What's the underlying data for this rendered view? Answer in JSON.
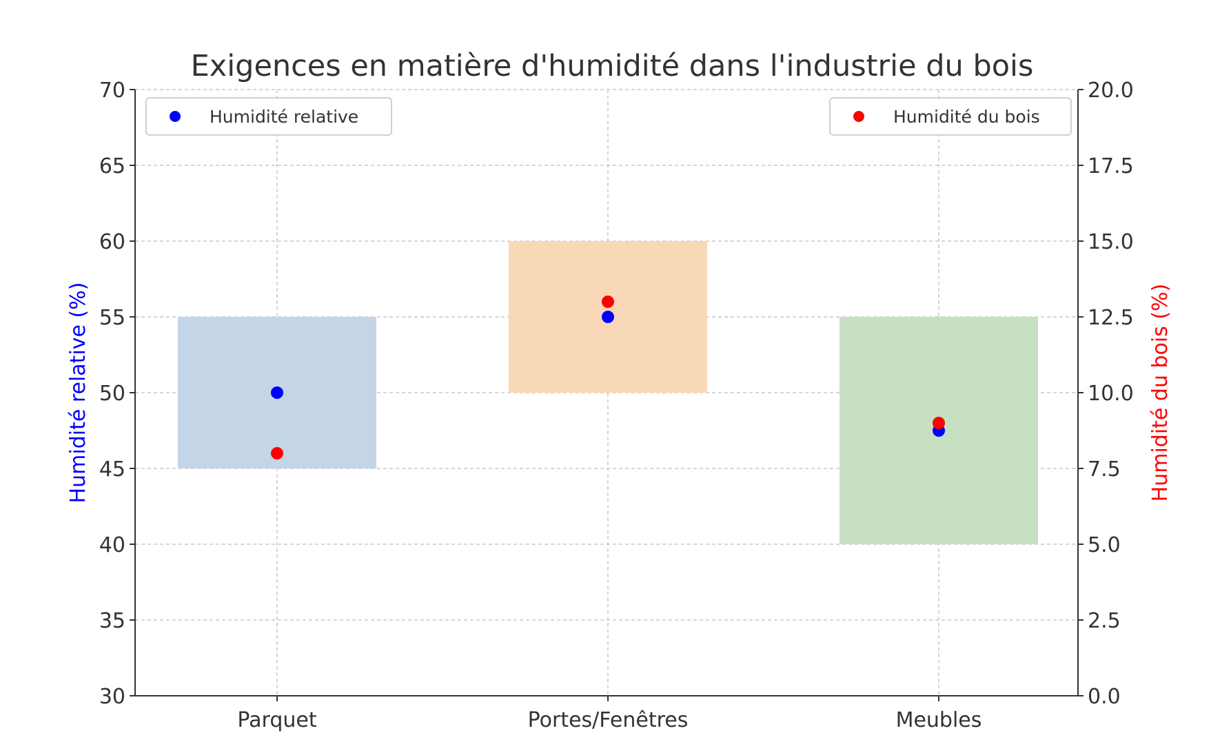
{
  "chart_data": {
    "type": "scatter",
    "title": "Exigences en matière d'humidité dans l'industrie du bois",
    "categories": [
      "Parquet",
      "Portes/Fenêtres",
      "Meubles"
    ],
    "y_left": {
      "label": "Humidité relative (%)",
      "color": "#0000ff",
      "ylim": [
        30,
        70
      ],
      "ticks": [
        "30",
        "35",
        "40",
        "45",
        "50",
        "55",
        "60",
        "65",
        "70"
      ]
    },
    "y_right": {
      "label": "Humidité du bois (%)",
      "color": "#ff0000",
      "ylim": [
        0,
        20
      ],
      "ticks": [
        "0.0",
        "2.5",
        "5.0",
        "7.5",
        "10.0",
        "12.5",
        "15.0",
        "17.5",
        "20.0"
      ]
    },
    "ranges": [
      {
        "category": "Parquet",
        "low": 45,
        "high": 55,
        "color": "#c3d5e6"
      },
      {
        "category": "Portes/Fenêtres",
        "low": 50,
        "high": 60,
        "color": "#f9d8b8"
      },
      {
        "category": "Meubles",
        "low": 40,
        "high": 55,
        "color": "#c6e0c1"
      }
    ],
    "series": [
      {
        "name": "Humidité relative",
        "axis": "left",
        "color": "#0000ff",
        "values": [
          50,
          55,
          47.5
        ]
      },
      {
        "name": "Humidité du bois",
        "axis": "right",
        "color": "#ff0000",
        "values": [
          8,
          13,
          9
        ]
      }
    ],
    "grid": true,
    "legend": {
      "left": "top-left",
      "right": "top-right"
    }
  }
}
